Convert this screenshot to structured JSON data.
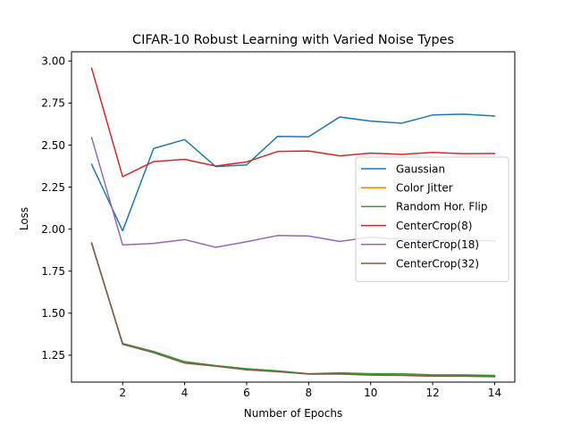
{
  "chart_data": {
    "type": "line",
    "title": "CIFAR-10 Robust Learning with Varied Noise Types",
    "xlabel": "Number of Epochs",
    "ylabel": "Loss",
    "xlim": [
      0.35,
      14.65
    ],
    "ylim": [
      1.09,
      3.055
    ],
    "x_ticks": [
      2,
      4,
      6,
      8,
      10,
      12,
      14
    ],
    "y_ticks": [
      1.25,
      1.5,
      1.75,
      2.0,
      2.25,
      2.5,
      2.75,
      3.0
    ],
    "y_tick_labels": [
      "1.25",
      "1.50",
      "1.75",
      "2.00",
      "2.25",
      "2.50",
      "2.75",
      "3.00"
    ],
    "grid": false,
    "legend_position": "center-right",
    "x": [
      1,
      2,
      3,
      4,
      5,
      6,
      7,
      8,
      9,
      10,
      11,
      12,
      13,
      14
    ],
    "series": [
      {
        "name": "Gaussian",
        "color": "#1f77b4",
        "values": [
          2.385,
          1.99,
          2.48,
          2.533,
          2.372,
          2.382,
          2.552,
          2.549,
          2.667,
          2.643,
          2.63,
          2.679,
          2.684,
          2.673
        ]
      },
      {
        "name": "Color Jitter",
        "color": "#ff7f0e",
        "values": [
          1.915,
          1.318,
          1.27,
          1.21,
          1.187,
          1.167,
          1.155,
          1.138,
          1.14,
          1.135,
          1.135,
          1.128,
          1.128,
          1.126
        ]
      },
      {
        "name": "Random Hor. Flip",
        "color": "#2ca02c",
        "values": [
          1.915,
          1.32,
          1.272,
          1.212,
          1.188,
          1.17,
          1.157,
          1.14,
          1.145,
          1.14,
          1.14,
          1.133,
          1.133,
          1.13
        ]
      },
      {
        "name": "CenterCrop(8)",
        "color": "#d62728",
        "values": [
          2.957,
          2.312,
          2.402,
          2.415,
          2.375,
          2.4,
          2.462,
          2.465,
          2.436,
          2.452,
          2.445,
          2.456,
          2.449,
          2.45
        ]
      },
      {
        "name": "CenterCrop(18)",
        "color": "#9467bd",
        "values": [
          2.545,
          1.906,
          1.915,
          1.938,
          1.892,
          1.925,
          1.962,
          1.959,
          1.927,
          1.952,
          1.94,
          1.933,
          1.935,
          1.93
        ]
      },
      {
        "name": "CenterCrop(32)",
        "color": "#8c564b",
        "values": [
          1.918,
          1.315,
          1.265,
          1.203,
          1.185,
          1.163,
          1.152,
          1.138,
          1.138,
          1.132,
          1.13,
          1.125,
          1.125,
          1.122
        ]
      }
    ]
  }
}
